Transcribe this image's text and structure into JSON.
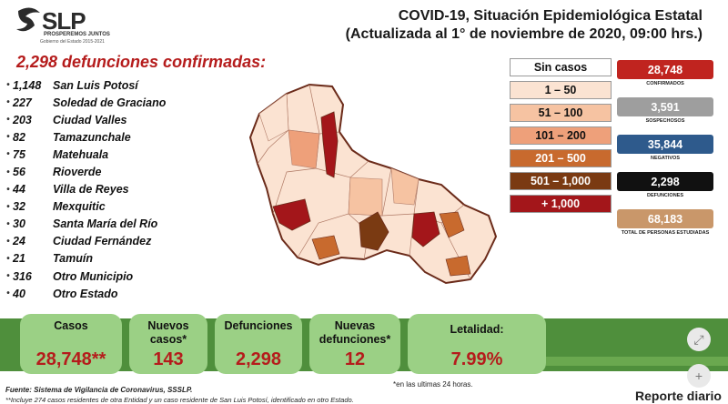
{
  "brand": {
    "name": "SLP",
    "tagline": "PROSPEREMOS JUNTOS",
    "sub": "Gobierno del Estado 2015-2021"
  },
  "title": {
    "line1": "COVID-19, Situación Epidemiológica Estatal",
    "line2": "(Actualizada al 1° de noviembre de 2020, 09:00 hrs.)"
  },
  "deaths_heading": "2,298 defunciones confirmadas:",
  "municipios": [
    {
      "bullet": "•",
      "num": "1,148",
      "name": "San Luis Potosí"
    },
    {
      "bullet": "•",
      "num": "227",
      "name": "Soledad de Graciano"
    },
    {
      "bullet": "•",
      "num": "203",
      "name": "Ciudad Valles"
    },
    {
      "bullet": "•",
      "num": "82",
      "name": "Tamazunchale"
    },
    {
      "bullet": "•",
      "num": "75",
      "name": "Matehuala"
    },
    {
      "bullet": "•",
      "num": "56",
      "name": "Rioverde"
    },
    {
      "bullet": "•",
      "num": "44",
      "name": "Villa de Reyes"
    },
    {
      "bullet": "•",
      "num": "32",
      "name": "Mexquitic"
    },
    {
      "bullet": "•",
      "num": "30",
      "name": "Santa María del Río"
    },
    {
      "bullet": "•",
      "num": "24",
      "name": "Ciudad Fernández"
    },
    {
      "bullet": "•",
      "num": "21",
      "name": "Tamuín"
    },
    {
      "bullet": "•",
      "num": "316",
      "name": "Otro Municipio"
    },
    {
      "bullet": "•",
      "num": "40",
      "name": "Otro Estado"
    }
  ],
  "legend": [
    {
      "label": "Sin casos",
      "color": "#ffffff",
      "text_color": "#111111"
    },
    {
      "label": "1 – 50",
      "color": "#fbe3d2",
      "text_color": "#111111"
    },
    {
      "label": "51 – 100",
      "color": "#f6c3a2",
      "text_color": "#111111"
    },
    {
      "label": "101 – 200",
      "color": "#eea07a",
      "text_color": "#111111"
    },
    {
      "label": "201 – 500",
      "color": "#c86a2e",
      "text_color": "#ffffff"
    },
    {
      "label": "501 – 1,000",
      "color": "#7a3a12",
      "text_color": "#ffffff"
    },
    {
      "label": "+ 1,000",
      "color": "#a3161a",
      "text_color": "#ffffff"
    }
  ],
  "stats": [
    {
      "value": "28,748",
      "label": "CONFIRMADOS",
      "color": "#c0241f"
    },
    {
      "value": "3,591",
      "label": "SOSPECHOSOS",
      "color": "#9e9e9e"
    },
    {
      "value": "35,844",
      "label": "NEGATIVOS",
      "color": "#2e5a8c"
    },
    {
      "value": "2,298",
      "label": "DEFUNCIONES",
      "color": "#111111"
    },
    {
      "value": "68,183",
      "label": "TOTAL DE PERSONAS ESTUDIADAS",
      "color": "#c9976a"
    }
  ],
  "cards": {
    "casos": {
      "label": "Casos",
      "value": "28,748**"
    },
    "nuevos_casos": {
      "label": "Nuevos casos*",
      "value": "143"
    },
    "defunciones": {
      "label": "Defunciones",
      "value": "2,298"
    },
    "nuevas_defunciones": {
      "label": "Nuevas defunciones*",
      "value": "12"
    },
    "letalidad": {
      "label": "Letalidad:",
      "value": "7.99%"
    }
  },
  "footnote_24h": "*en las ultimas 24 horas.",
  "fuente": "Fuente: Sistema de Vigilancia de Coronavirus, SSSLP.",
  "footnote2": "**Incluye 274 casos residentes de otra Entidad y un caso residente de San Luis Potosí, identificado en otro Estado.",
  "reporte": "Reporte diario",
  "icons": [
    "expand-icon",
    "plus-icon"
  ]
}
